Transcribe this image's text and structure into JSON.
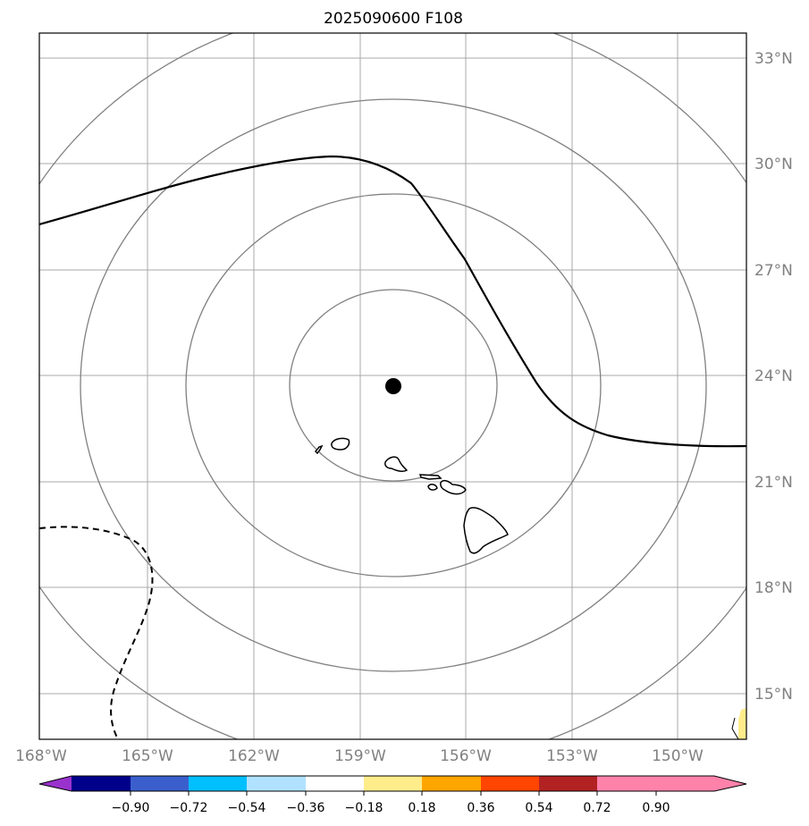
{
  "title": "2025090600 F108",
  "map": {
    "lat_labels": [
      "33°N",
      "30°N",
      "27°N",
      "24°N",
      "21°N",
      "18°N",
      "15°N"
    ],
    "lon_labels": [
      "168°W",
      "165°W",
      "162°W",
      "159°W",
      "156°W",
      "153°W",
      "150°W"
    ],
    "center_marker": {
      "lon": -158.0,
      "lat": 23.7
    },
    "range_rings": 4,
    "colors": {
      "grid": "#a9a9a9",
      "rings": "#808080",
      "contour": "#000000",
      "coast": "#000000",
      "shade_positive_low": "#ffec8b"
    }
  },
  "colorbar": {
    "ticks": [
      "−0.90",
      "−0.72",
      "−0.54",
      "−0.36",
      "−0.18",
      "0.18",
      "0.36",
      "0.54",
      "0.72",
      "0.90"
    ],
    "colors": [
      "#9932cc",
      "#00008b",
      "#3a5fcd",
      "#00bfff",
      "#b0e2ff",
      "#ffffff",
      "#ffec8b",
      "#ffa500",
      "#ff4500",
      "#b22222",
      "#ff82ab"
    ]
  }
}
